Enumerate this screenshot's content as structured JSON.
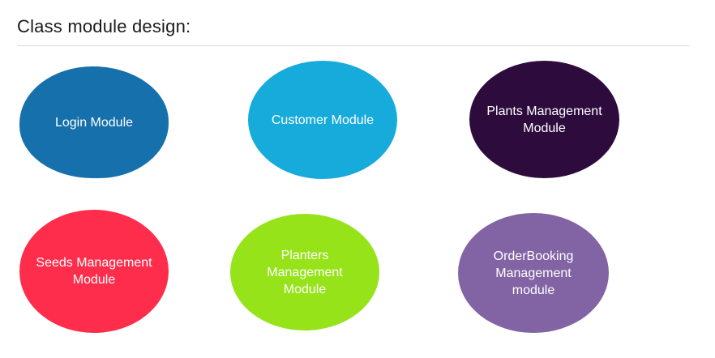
{
  "title": "Class module design:",
  "modules": [
    {
      "id": "login",
      "lines": [
        "Login Module"
      ],
      "color": "#1570ab"
    },
    {
      "id": "customer",
      "lines": [
        "Customer Module"
      ],
      "color": "#17abdc"
    },
    {
      "id": "plants",
      "lines": [
        "Plants Management",
        "Module"
      ],
      "color": "#2d0c3d"
    },
    {
      "id": "seeds",
      "lines": [
        "Seeds Management",
        "Module"
      ],
      "color": "#fe2d4c"
    },
    {
      "id": "planters",
      "lines": [
        "Planters",
        "Management",
        "Module"
      ],
      "color": "#96e31a"
    },
    {
      "id": "orderbooking",
      "lines": [
        "OrderBooking",
        "Management",
        "module"
      ],
      "color": "#8264a5"
    }
  ]
}
